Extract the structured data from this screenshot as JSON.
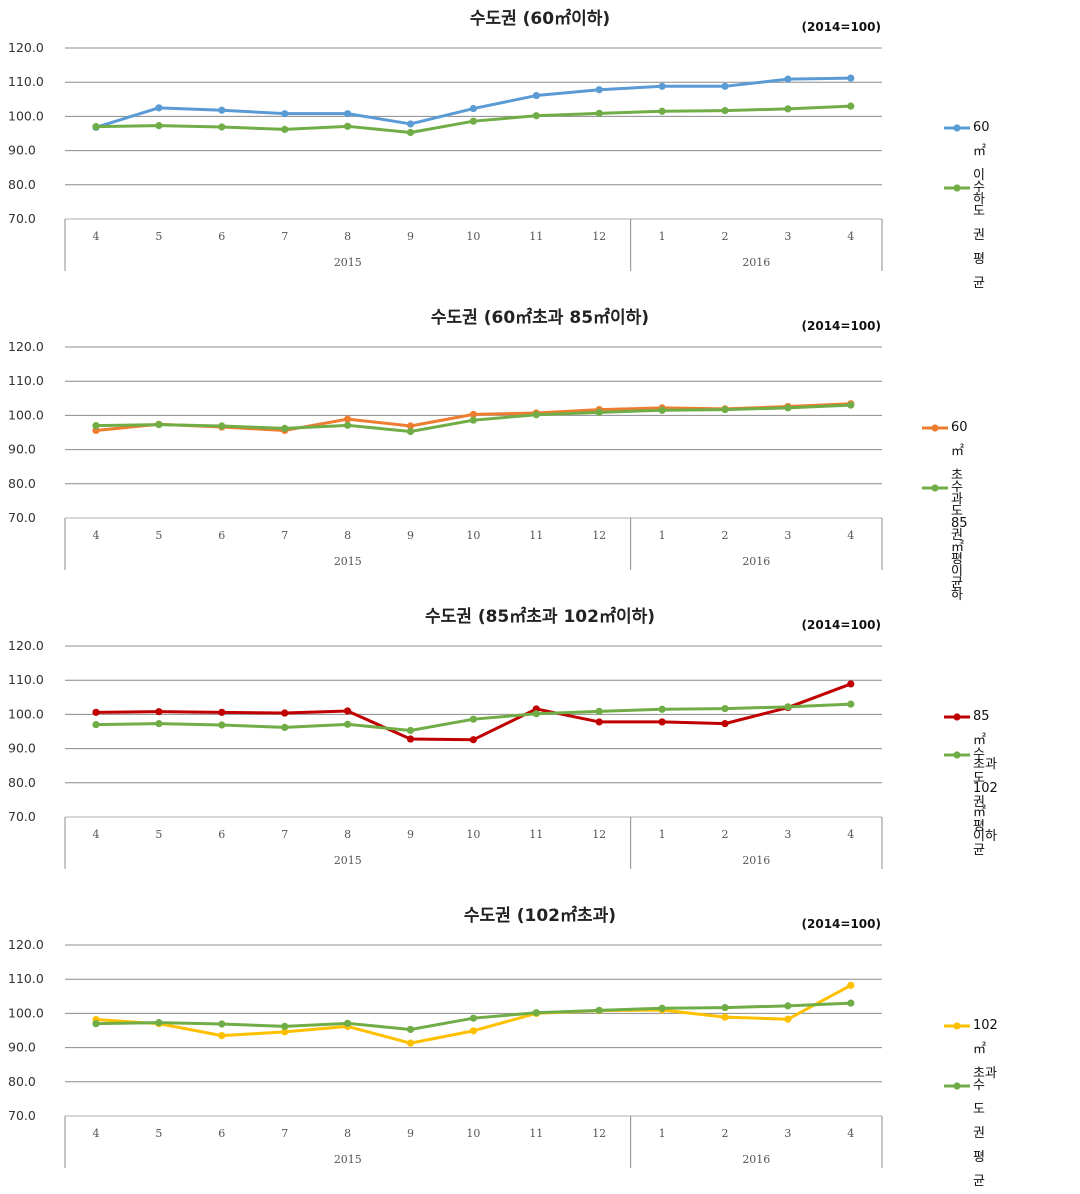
{
  "unit_note": "(2014=100)",
  "chart_data": [
    {
      "type": "line",
      "title": "수도권 (60㎡이하)",
      "note": "(2014=100)",
      "categories": [
        "4",
        "5",
        "6",
        "7",
        "8",
        "9",
        "10",
        "11",
        "12",
        "1",
        "2",
        "3",
        "4"
      ],
      "year_groups": [
        {
          "label": "2015",
          "count": 9
        },
        {
          "label": "2016",
          "count": 4
        }
      ],
      "ylim": [
        70,
        120
      ],
      "yticks": [
        "70.0",
        "80.0",
        "90.0",
        "100.0",
        "110.0",
        "120.0"
      ],
      "series": [
        {
          "name": "60㎡이하",
          "color": "#5b9bd5",
          "values": [
            96.8,
            102.5,
            101.8,
            100.8,
            100.8,
            97.8,
            102.3,
            106.1,
            107.8,
            108.8,
            108.8,
            110.9,
            111.2
          ]
        },
        {
          "name": "수도권 평균",
          "color": "#70ad47",
          "values": [
            97.0,
            97.3,
            96.9,
            96.2,
            97.1,
            95.3,
            98.6,
            100.2,
            100.9,
            101.5,
            101.7,
            102.2,
            103.0
          ]
        }
      ]
    },
    {
      "type": "line",
      "title": "수도권 (60㎡초과 85㎡이하)",
      "note": "(2014=100)",
      "categories": [
        "4",
        "5",
        "6",
        "7",
        "8",
        "9",
        "10",
        "11",
        "12",
        "1",
        "2",
        "3",
        "4"
      ],
      "year_groups": [
        {
          "label": "2015",
          "count": 9
        },
        {
          "label": "2016",
          "count": 4
        }
      ],
      "ylim": [
        70,
        120
      ],
      "yticks": [
        "70.0",
        "80.0",
        "90.0",
        "100.0",
        "110.0",
        "120.0"
      ],
      "series": [
        {
          "name": "60㎡초과 85㎡이하",
          "color": "#ed7d31",
          "values": [
            95.6,
            97.4,
            96.6,
            95.6,
            98.9,
            96.9,
            100.3,
            100.7,
            101.7,
            102.2,
            101.9,
            102.6,
            103.4
          ]
        },
        {
          "name": "수도권 평균",
          "color": "#70ad47",
          "values": [
            97.0,
            97.3,
            96.9,
            96.2,
            97.1,
            95.3,
            98.6,
            100.2,
            100.9,
            101.5,
            101.7,
            102.2,
            103.0
          ]
        }
      ]
    },
    {
      "type": "line",
      "title": "수도권 (85㎡초과 102㎡이하)",
      "note": "(2014=100)",
      "categories": [
        "4",
        "5",
        "6",
        "7",
        "8",
        "9",
        "10",
        "11",
        "12",
        "1",
        "2",
        "3",
        "4"
      ],
      "year_groups": [
        {
          "label": "2015",
          "count": 9
        },
        {
          "label": "2016",
          "count": 4
        }
      ],
      "ylim": [
        70,
        120
      ],
      "yticks": [
        "70.0",
        "80.0",
        "90.0",
        "100.0",
        "110.0",
        "120.0"
      ],
      "series": [
        {
          "name": "85㎡초과\n102㎡이하",
          "color": "#c00000",
          "values": [
            100.6,
            100.8,
            100.6,
            100.4,
            101.0,
            92.8,
            92.6,
            101.6,
            97.8,
            97.8,
            97.3,
            102.0,
            108.9
          ]
        },
        {
          "name": "수도권 평균",
          "color": "#70ad47",
          "values": [
            97.0,
            97.3,
            96.9,
            96.2,
            97.1,
            95.3,
            98.6,
            100.2,
            100.9,
            101.5,
            101.7,
            102.2,
            103.0
          ]
        }
      ]
    },
    {
      "type": "line",
      "title": "수도권 (102㎡초과)",
      "note": "(2014=100)",
      "categories": [
        "4",
        "5",
        "6",
        "7",
        "8",
        "9",
        "10",
        "11",
        "12",
        "1",
        "2",
        "3",
        "4"
      ],
      "year_groups": [
        {
          "label": "2015",
          "count": 9
        },
        {
          "label": "2016",
          "count": 4
        }
      ],
      "ylim": [
        70,
        120
      ],
      "yticks": [
        "70.0",
        "80.0",
        "90.0",
        "100.0",
        "110.0",
        "120.0"
      ],
      "series": [
        {
          "name": "102㎡초과",
          "color": "#ffc000",
          "values": [
            98.2,
            97.0,
            93.5,
            94.6,
            96.2,
            91.3,
            94.9,
            100.0,
            100.8,
            101.0,
            98.9,
            98.3,
            108.2
          ]
        },
        {
          "name": "수도권 평균",
          "color": "#70ad47",
          "values": [
            97.0,
            97.3,
            96.9,
            96.2,
            97.1,
            95.3,
            98.6,
            100.2,
            100.9,
            101.5,
            101.7,
            102.2,
            103.0
          ]
        }
      ]
    }
  ]
}
